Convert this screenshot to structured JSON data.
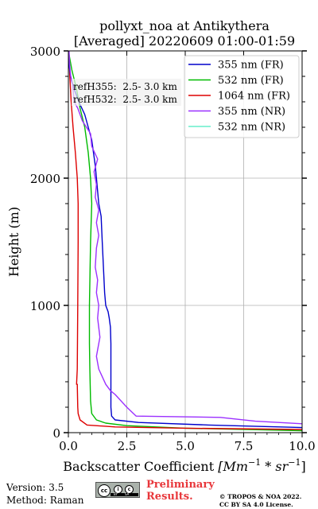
{
  "chart_data": {
    "type": "line",
    "title": "pollyxt_noa at Antikythera",
    "subtitle": "[Averaged] 20220609 01:00-01:59",
    "xlabel_prefix": "Backscatter Coefficient ",
    "xlabel_math": "[Mm",
    "xlabel_sup1": "−1",
    "xlabel_mid": " * sr",
    "xlabel_sup2": "−1",
    "xlabel_suffix": "]",
    "ylabel": "Height (m)",
    "xlim": [
      0,
      10
    ],
    "ylim": [
      0,
      3000
    ],
    "xticks": [
      "0.0",
      "2.5",
      "5.0",
      "7.5",
      "10.0"
    ],
    "xtick_values": [
      0,
      2.5,
      5,
      7.5,
      10
    ],
    "yticks": [
      "0",
      "1000",
      "2000",
      "3000"
    ],
    "ytick_values": [
      0,
      1000,
      2000,
      3000
    ],
    "grid": true,
    "legend_position": "top-right",
    "annotations": [
      "refH355:  2.5- 3.0 km",
      "refH532:  2.5- 3.0 km"
    ],
    "series": [
      {
        "name": "355 nm (FR)",
        "color": "#0000cc",
        "points": [
          [
            10.0,
            40
          ],
          [
            6.0,
            60
          ],
          [
            3.0,
            80
          ],
          [
            2.0,
            100
          ],
          [
            1.85,
            130
          ],
          [
            1.82,
            200
          ],
          [
            1.82,
            400
          ],
          [
            1.82,
            700
          ],
          [
            1.8,
            830
          ],
          [
            1.75,
            900
          ],
          [
            1.7,
            950
          ],
          [
            1.6,
            1000
          ],
          [
            1.55,
            1100
          ],
          [
            1.5,
            1300
          ],
          [
            1.45,
            1500
          ],
          [
            1.4,
            1700
          ],
          [
            1.3,
            1800
          ],
          [
            1.2,
            2000
          ],
          [
            1.15,
            2100
          ],
          [
            1.0,
            2300
          ],
          [
            0.7,
            2500
          ],
          [
            0.45,
            2600
          ],
          [
            0.25,
            2700
          ],
          [
            0.1,
            2800
          ],
          [
            0.02,
            2900
          ],
          [
            0.0,
            3000
          ]
        ]
      },
      {
        "name": "532 nm (FR)",
        "color": "#00bb00",
        "points": [
          [
            10.0,
            15
          ],
          [
            5.0,
            35
          ],
          [
            2.5,
            55
          ],
          [
            1.6,
            75
          ],
          [
            1.2,
            100
          ],
          [
            1.0,
            150
          ],
          [
            0.95,
            250
          ],
          [
            0.92,
            500
          ],
          [
            0.9,
            700
          ],
          [
            0.9,
            1000
          ],
          [
            0.95,
            1500
          ],
          [
            1.0,
            1800
          ],
          [
            0.95,
            2000
          ],
          [
            0.85,
            2200
          ],
          [
            0.7,
            2400
          ],
          [
            0.5,
            2550
          ],
          [
            0.35,
            2700
          ],
          [
            0.15,
            2850
          ],
          [
            0.05,
            2950
          ],
          [
            0.0,
            3000
          ]
        ]
      },
      {
        "name": "1064 nm (FR)",
        "color": "#dd0000",
        "points": [
          [
            10.0,
            25
          ],
          [
            5.0,
            35
          ],
          [
            2.0,
            45
          ],
          [
            0.8,
            60
          ],
          [
            0.5,
            100
          ],
          [
            0.42,
            150
          ],
          [
            0.4,
            200
          ],
          [
            0.38,
            380
          ],
          [
            0.35,
            380
          ],
          [
            0.38,
            500
          ],
          [
            0.4,
            1000
          ],
          [
            0.42,
            1500
          ],
          [
            0.42,
            1800
          ],
          [
            0.38,
            2000
          ],
          [
            0.3,
            2200
          ],
          [
            0.2,
            2400
          ],
          [
            0.12,
            2600
          ],
          [
            0.06,
            2800
          ],
          [
            0.02,
            3000
          ]
        ]
      },
      {
        "name": "355 nm (NR)",
        "color": "#9b30ff",
        "points": [
          [
            10.0,
            70
          ],
          [
            8.0,
            90
          ],
          [
            6.5,
            120
          ],
          [
            2.9,
            130
          ],
          [
            2.5,
            200
          ],
          [
            2.0,
            300
          ],
          [
            1.8,
            330
          ],
          [
            1.6,
            380
          ],
          [
            1.3,
            500
          ],
          [
            1.2,
            600
          ],
          [
            1.35,
            750
          ],
          [
            1.25,
            900
          ],
          [
            1.3,
            1000
          ],
          [
            1.2,
            1100
          ],
          [
            1.25,
            1200
          ],
          [
            1.15,
            1300
          ],
          [
            1.2,
            1450
          ],
          [
            1.3,
            1550
          ],
          [
            1.2,
            1650
          ],
          [
            1.3,
            1750
          ],
          [
            1.15,
            1850
          ],
          [
            1.2,
            1950
          ],
          [
            1.1,
            2050
          ],
          [
            1.25,
            2150
          ],
          [
            1.0,
            2250
          ],
          [
            0.95,
            2350
          ],
          [
            0.6,
            2450
          ],
          [
            0.4,
            2550
          ],
          [
            0.25,
            2600
          ],
          [
            0.2,
            2700
          ],
          [
            0.1,
            2800
          ],
          [
            0.05,
            2900
          ],
          [
            0.03,
            3000
          ]
        ]
      },
      {
        "name": "532 nm (NR)",
        "color": "#66eecc",
        "points": []
      }
    ]
  },
  "footer": {
    "version": "Version: 3.5",
    "method": "Method: Raman",
    "prelim_line1": "Preliminary",
    "prelim_line2": "Results.",
    "copyright_line1": "© TROPOS & NOA 2022.",
    "copyright_line2": "CC BY SA 4.0 License.",
    "license_badge_text": "cc",
    "license_badge_by": "BY",
    "license_badge_sa": "SA"
  }
}
